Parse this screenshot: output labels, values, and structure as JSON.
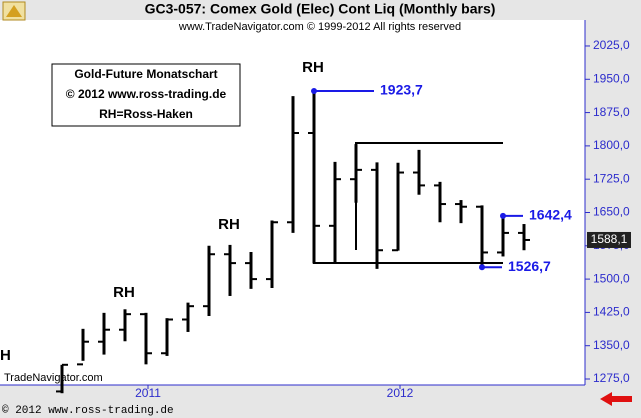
{
  "chart_data": {
    "type": "ohlc",
    "title": "GC3-057:  Comex Gold (Elec) Cont Liq  (Monthly bars)",
    "subtitle": "www.TradeNavigator.com © 1999-2012 All rights reserved",
    "info_box": [
      "Gold-Future Monatschart",
      "© 2012  www.ross-trading.de",
      "RH=Ross-Haken"
    ],
    "watermark": "TradeNavigator.com",
    "footer": "© 2012  www.ross-trading.de",
    "categories": [
      null,
      null,
      null,
      null,
      "2011",
      null,
      null,
      null,
      null,
      null,
      null,
      null,
      null,
      null,
      null,
      null,
      "2012",
      null,
      null,
      null,
      null,
      null,
      null
    ],
    "open": [
      1247,
      1308,
      1359,
      1386,
      1421,
      1333,
      1409,
      1439,
      1556,
      1536,
      1500,
      1628,
      1829,
      1620,
      1725,
      1746,
      1565,
      1740,
      1711,
      1669,
      1663,
      1560,
      1604
    ],
    "high": [
      1307,
      1388,
      1424,
      1432,
      1424,
      1412,
      1447,
      1575,
      1577,
      1561,
      1632,
      1912,
      1923.7,
      1764,
      1804,
      1763,
      1762,
      1791,
      1719,
      1678,
      1666,
      1642.4,
      1624
    ],
    "low": [
      1243,
      1316,
      1330,
      1360,
      1308,
      1327,
      1381,
      1417,
      1462,
      1478,
      1480,
      1604,
      1535,
      1534,
      1672,
      1523,
      1564,
      1690,
      1628,
      1626,
      1526.7,
      1551,
      1565
    ],
    "close": [
      1307,
      1359,
      1386,
      1421,
      1333,
      1409,
      1439,
      1556,
      1536,
      1500,
      1628,
      1829,
      1620,
      1725,
      1746,
      1565,
      1740,
      1711,
      1669,
      1663,
      1560,
      1604,
      1588.1
    ],
    "color": "#000000",
    "last_label": "1588,1",
    "price_labels": [
      {
        "value": 1923.7,
        "label": "1923,7"
      },
      {
        "value": 1642.4,
        "label": "1642,4"
      },
      {
        "value": 1526.7,
        "label": "1526,7"
      }
    ],
    "pattern_labels": [
      "H",
      "RH",
      "RH",
      "RH"
    ],
    "ylim": [
      1261.5,
      2083.5
    ],
    "yticks": [
      {
        "value": 1275,
        "label": "1275,0"
      },
      {
        "value": 1350,
        "label": "1350,0"
      },
      {
        "value": 1425,
        "label": "1425,0"
      },
      {
        "value": 1500,
        "label": "1500,0"
      },
      {
        "value": 1575,
        "label": "1575,0"
      },
      {
        "value": 1650,
        "label": "1650,0"
      },
      {
        "value": 1725,
        "label": "1725,0"
      },
      {
        "value": 1800,
        "label": "1800,0"
      },
      {
        "value": 1875,
        "label": "1875,0"
      },
      {
        "value": 1950,
        "label": "1950,0"
      },
      {
        "value": 2025,
        "label": "2025,0"
      }
    ]
  }
}
